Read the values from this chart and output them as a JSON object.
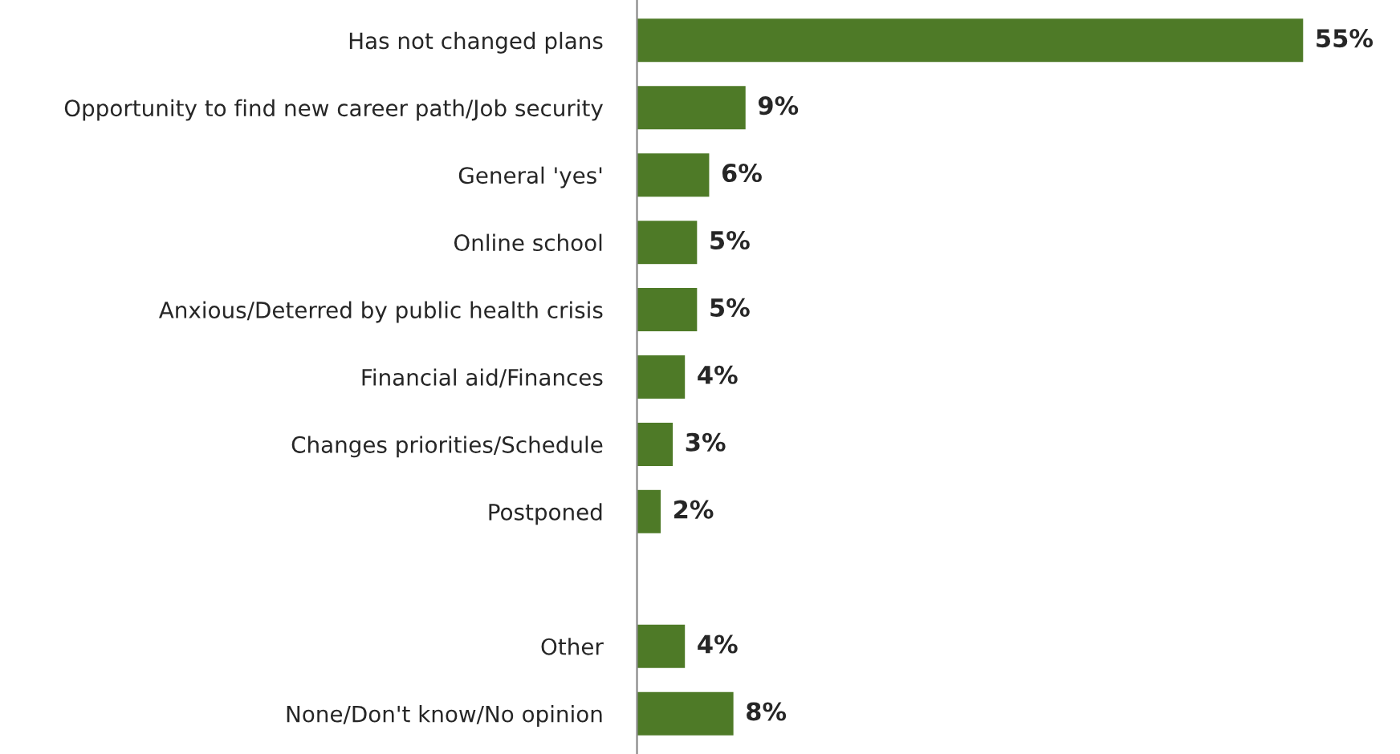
{
  "chart_data": {
    "type": "bar",
    "orientation": "horizontal",
    "categories": [
      "Has not changed plans",
      "Opportunity to find new career path/Job security",
      "General 'yes'",
      "Online school",
      "Anxious/Deterred by public health crisis",
      "Financial aid/Finances",
      "Changes priorities/Schedule",
      "Postponed",
      null,
      "Other",
      "None/Don't know/No opinion"
    ],
    "values": [
      55,
      9,
      6,
      5,
      5,
      4,
      3,
      2,
      null,
      4,
      8
    ],
    "value_labels": [
      "55%",
      "9%",
      "6%",
      "5%",
      "5%",
      "4%",
      "3%",
      "2%",
      null,
      "4%",
      "8%"
    ],
    "color": "#4e7a27",
    "grid": false,
    "legend": false
  }
}
